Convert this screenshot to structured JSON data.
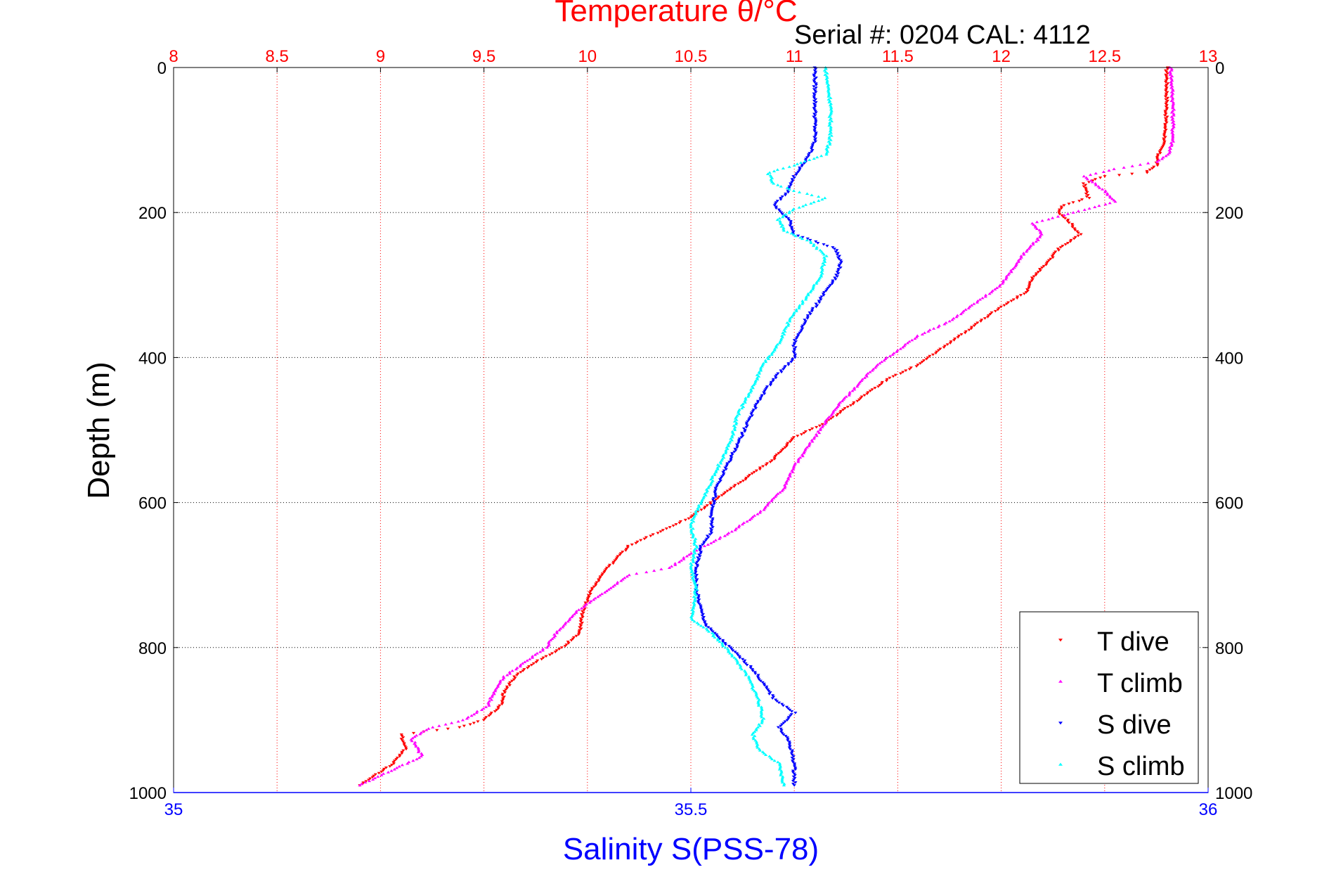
{
  "chart_data": {
    "type": "scatter",
    "title": "Temperature θ/°C",
    "serial_label": "Serial #: 0204  CAL: 4112",
    "ylabel": "Depth (m)",
    "xlabel_bottom": "Salinity S(PSS-78)",
    "top_axis": {
      "label": "Temperature θ/°C",
      "range": [
        8,
        13
      ],
      "ticks": [
        "8",
        "8.5",
        "9",
        "9.5",
        "10",
        "10.5",
        "11",
        "11.5",
        "12",
        "12.5",
        "13"
      ],
      "color": "#ff0000"
    },
    "bottom_axis": {
      "label": "Salinity S(PSS-78)",
      "range": [
        35,
        36
      ],
      "ticks": [
        "35",
        "35.5",
        "36"
      ],
      "color": "#0000ff"
    },
    "y_axis": {
      "range": [
        0,
        1000
      ],
      "inverted": true,
      "ticks": [
        "0",
        "200",
        "400",
        "600",
        "800",
        "1000"
      ]
    },
    "grid": true,
    "legend_position": "bottom-right",
    "series": [
      {
        "name": "T dive",
        "axis": "top",
        "color": "#ff0000",
        "marker": "down-triangle",
        "points": [
          [
            12.8,
            0
          ],
          [
            12.8,
            50
          ],
          [
            12.79,
            100
          ],
          [
            12.76,
            120
          ],
          [
            12.75,
            135
          ],
          [
            12.7,
            145
          ],
          [
            12.5,
            150
          ],
          [
            12.4,
            160
          ],
          [
            12.42,
            180
          ],
          [
            12.3,
            190
          ],
          [
            12.28,
            200
          ],
          [
            12.32,
            210
          ],
          [
            12.38,
            230
          ],
          [
            12.28,
            250
          ],
          [
            12.22,
            270
          ],
          [
            12.15,
            290
          ],
          [
            12.12,
            310
          ],
          [
            12.0,
            330
          ],
          [
            11.9,
            350
          ],
          [
            11.8,
            370
          ],
          [
            11.7,
            390
          ],
          [
            11.6,
            410
          ],
          [
            11.45,
            430
          ],
          [
            11.35,
            450
          ],
          [
            11.25,
            470
          ],
          [
            11.15,
            490
          ],
          [
            11.0,
            510
          ],
          [
            10.9,
            540
          ],
          [
            10.8,
            560
          ],
          [
            10.7,
            580
          ],
          [
            10.6,
            600
          ],
          [
            10.5,
            620
          ],
          [
            10.35,
            640
          ],
          [
            10.2,
            660
          ],
          [
            10.1,
            690
          ],
          [
            10.02,
            720
          ],
          [
            9.98,
            750
          ],
          [
            9.96,
            780
          ],
          [
            9.88,
            800
          ],
          [
            9.75,
            820
          ],
          [
            9.65,
            840
          ],
          [
            9.6,
            860
          ],
          [
            9.58,
            880
          ],
          [
            9.5,
            900
          ],
          [
            9.38,
            910
          ],
          [
            9.1,
            920
          ],
          [
            9.12,
            940
          ],
          [
            9.06,
            960
          ],
          [
            8.98,
            975
          ],
          [
            8.9,
            990
          ]
        ]
      },
      {
        "name": "T climb",
        "axis": "top",
        "color": "#ff00ff",
        "marker": "up-triangle",
        "points": [
          [
            12.82,
            0
          ],
          [
            12.83,
            50
          ],
          [
            12.83,
            100
          ],
          [
            12.81,
            120
          ],
          [
            12.75,
            130
          ],
          [
            12.55,
            140
          ],
          [
            12.4,
            150
          ],
          [
            12.5,
            170
          ],
          [
            12.55,
            185
          ],
          [
            12.35,
            200
          ],
          [
            12.15,
            215
          ],
          [
            12.2,
            230
          ],
          [
            12.1,
            260
          ],
          [
            12.0,
            300
          ],
          [
            11.85,
            330
          ],
          [
            11.75,
            350
          ],
          [
            11.6,
            370
          ],
          [
            11.5,
            390
          ],
          [
            11.4,
            410
          ],
          [
            11.3,
            440
          ],
          [
            11.2,
            470
          ],
          [
            11.1,
            510
          ],
          [
            11.0,
            550
          ],
          [
            10.95,
            580
          ],
          [
            10.85,
            610
          ],
          [
            10.7,
            640
          ],
          [
            10.5,
            670
          ],
          [
            10.4,
            690
          ],
          [
            10.2,
            700
          ],
          [
            10.05,
            730
          ],
          [
            9.95,
            750
          ],
          [
            9.85,
            780
          ],
          [
            9.8,
            800
          ],
          [
            9.7,
            820
          ],
          [
            9.6,
            840
          ],
          [
            9.55,
            860
          ],
          [
            9.52,
            880
          ],
          [
            9.4,
            900
          ],
          [
            9.25,
            910
          ],
          [
            9.15,
            925
          ],
          [
            9.2,
            950
          ],
          [
            9.05,
            970
          ],
          [
            8.9,
            990
          ]
        ]
      },
      {
        "name": "S dive",
        "axis": "bottom",
        "color": "#0000ff",
        "marker": "down-triangle",
        "points": [
          [
            35.62,
            0
          ],
          [
            35.62,
            50
          ],
          [
            35.62,
            100
          ],
          [
            35.615,
            120
          ],
          [
            35.6,
            150
          ],
          [
            35.595,
            170
          ],
          [
            35.58,
            190
          ],
          [
            35.595,
            210
          ],
          [
            35.6,
            230
          ],
          [
            35.64,
            250
          ],
          [
            35.645,
            270
          ],
          [
            35.64,
            290
          ],
          [
            35.625,
            320
          ],
          [
            35.61,
            350
          ],
          [
            35.6,
            380
          ],
          [
            35.6,
            400
          ],
          [
            35.58,
            430
          ],
          [
            35.565,
            460
          ],
          [
            35.555,
            490
          ],
          [
            35.545,
            520
          ],
          [
            35.535,
            550
          ],
          [
            35.525,
            580
          ],
          [
            35.52,
            610
          ],
          [
            35.52,
            640
          ],
          [
            35.51,
            660
          ],
          [
            35.505,
            690
          ],
          [
            35.505,
            720
          ],
          [
            35.51,
            750
          ],
          [
            35.515,
            770
          ],
          [
            35.53,
            790
          ],
          [
            35.545,
            810
          ],
          [
            35.56,
            830
          ],
          [
            35.57,
            850
          ],
          [
            35.58,
            870
          ],
          [
            35.6,
            890
          ],
          [
            35.585,
            910
          ],
          [
            35.595,
            930
          ],
          [
            35.6,
            960
          ],
          [
            35.6,
            990
          ]
        ]
      },
      {
        "name": "S climb",
        "axis": "bottom",
        "color": "#00ffff",
        "marker": "up-triangle",
        "points": [
          [
            35.63,
            0
          ],
          [
            35.635,
            50
          ],
          [
            35.635,
            100
          ],
          [
            35.63,
            120
          ],
          [
            35.6,
            135
          ],
          [
            35.575,
            145
          ],
          [
            35.58,
            160
          ],
          [
            35.6,
            170
          ],
          [
            35.63,
            180
          ],
          [
            35.6,
            195
          ],
          [
            35.585,
            210
          ],
          [
            35.59,
            225
          ],
          [
            35.615,
            240
          ],
          [
            35.63,
            260
          ],
          [
            35.625,
            290
          ],
          [
            35.61,
            320
          ],
          [
            35.595,
            350
          ],
          [
            35.585,
            380
          ],
          [
            35.57,
            410
          ],
          [
            35.56,
            440
          ],
          [
            35.545,
            480
          ],
          [
            35.54,
            510
          ],
          [
            35.53,
            540
          ],
          [
            35.52,
            570
          ],
          [
            35.51,
            600
          ],
          [
            35.5,
            630
          ],
          [
            35.505,
            660
          ],
          [
            35.5,
            690
          ],
          [
            35.505,
            720
          ],
          [
            35.5,
            760
          ],
          [
            35.52,
            780
          ],
          [
            35.54,
            810
          ],
          [
            35.555,
            840
          ],
          [
            35.565,
            870
          ],
          [
            35.57,
            900
          ],
          [
            35.56,
            920
          ],
          [
            35.565,
            940
          ],
          [
            35.585,
            960
          ],
          [
            35.59,
            990
          ]
        ]
      }
    ]
  }
}
